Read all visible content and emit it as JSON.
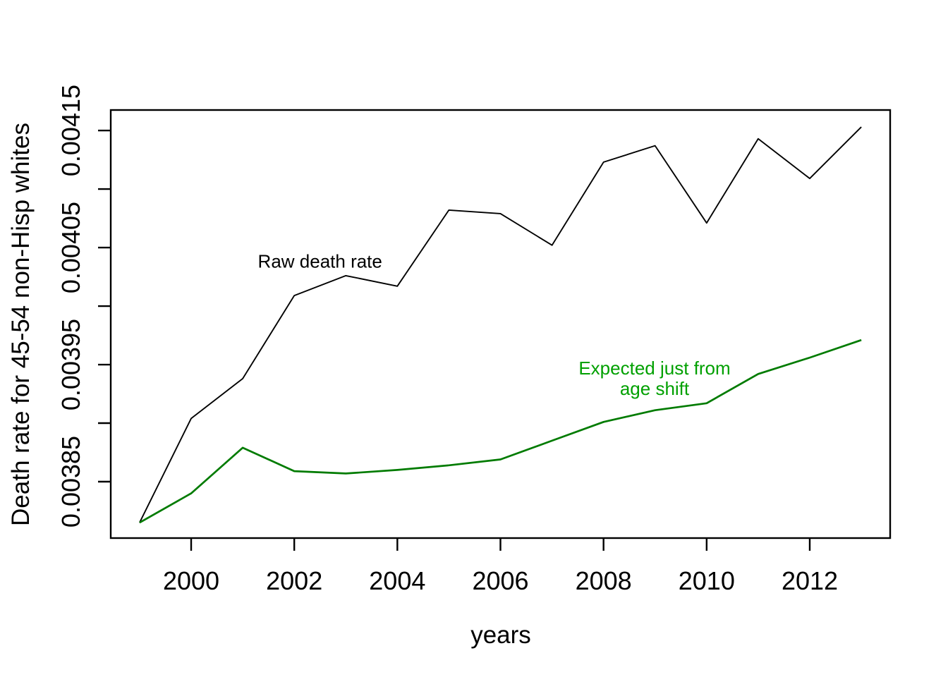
{
  "figure": {
    "background": "#ffffff",
    "axis_color": "#000000"
  },
  "chart_data": {
    "type": "line",
    "title": "",
    "xlabel": "years",
    "ylabel": "Death rate for 45-54 non-Hisp whites",
    "x": [
      1999,
      2000,
      2001,
      2002,
      2003,
      2004,
      2005,
      2006,
      2007,
      2008,
      2009,
      2010,
      2011,
      2012,
      2013
    ],
    "series": [
      {
        "name": "Raw death rate",
        "color": "#000000",
        "line_width": 1.9,
        "values": [
          0.003815,
          0.003904,
          0.003938,
          0.004009,
          0.004026,
          0.004017,
          0.004082,
          0.004079,
          0.004052,
          0.004123,
          0.004137,
          0.004071,
          0.004143,
          0.004109,
          0.004153
        ]
      },
      {
        "name": "Expected just from age shift",
        "color": "#007B00",
        "line_width": 2.7,
        "values": [
          0.003815,
          0.00384,
          0.003879,
          0.003859,
          0.003857,
          0.00386,
          0.003864,
          0.003869,
          0.003885,
          0.003901,
          0.003911,
          0.003917,
          0.003942,
          0.003956,
          0.003971
        ]
      }
    ],
    "xlim": [
      1998.44,
      2013.56
    ],
    "ylim": [
      0.0038018,
      0.0041675
    ],
    "x_ticks": [
      2000,
      2002,
      2004,
      2006,
      2008,
      2010,
      2012
    ],
    "x_tick_labels": [
      "2000",
      "2002",
      "2004",
      "2006",
      "2008",
      "2010",
      "2012"
    ],
    "y_ticks": [
      0.00385,
      0.0039,
      0.00395,
      0.004,
      0.00405,
      0.0041,
      0.00415
    ],
    "y_tick_labels": [
      "0.00385",
      "",
      "0.00395",
      "",
      "0.00405",
      "",
      "0.00415"
    ],
    "grid": false,
    "legend_position": "none",
    "annotations": [
      {
        "text": "Raw death rate",
        "x": 2002.5,
        "y": 0.004038,
        "color": "#000000"
      },
      {
        "text": "Expected just from\nage shift",
        "x": 2008.99,
        "y": 0.003938,
        "color": "#00A000"
      }
    ]
  }
}
